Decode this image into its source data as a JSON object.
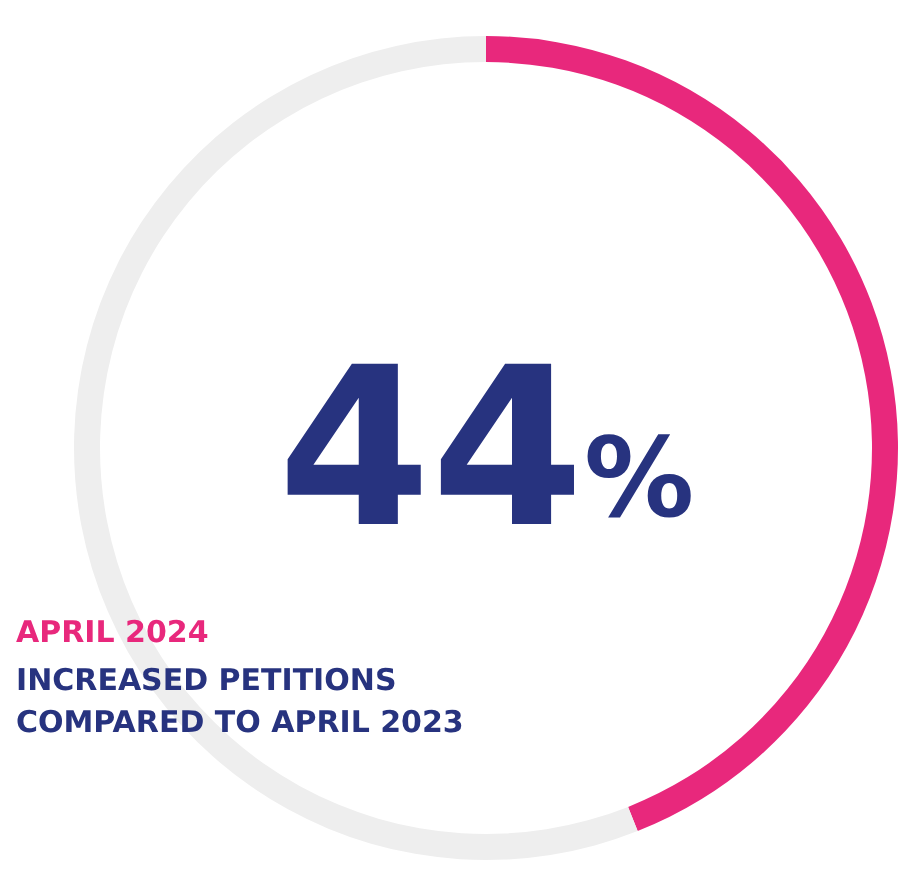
{
  "chart_data": {
    "type": "donut",
    "categories": [
      null,
      null
    ],
    "values": [
      44,
      56
    ],
    "colors": [
      "#e8287c",
      "#eeeeee"
    ],
    "value_labels": [
      "44%",
      null
    ],
    "annotations": [
      "APRIL 2024",
      "INCREASED PETITIONS COMPARED TO APRIL 2023"
    ]
  }
}
